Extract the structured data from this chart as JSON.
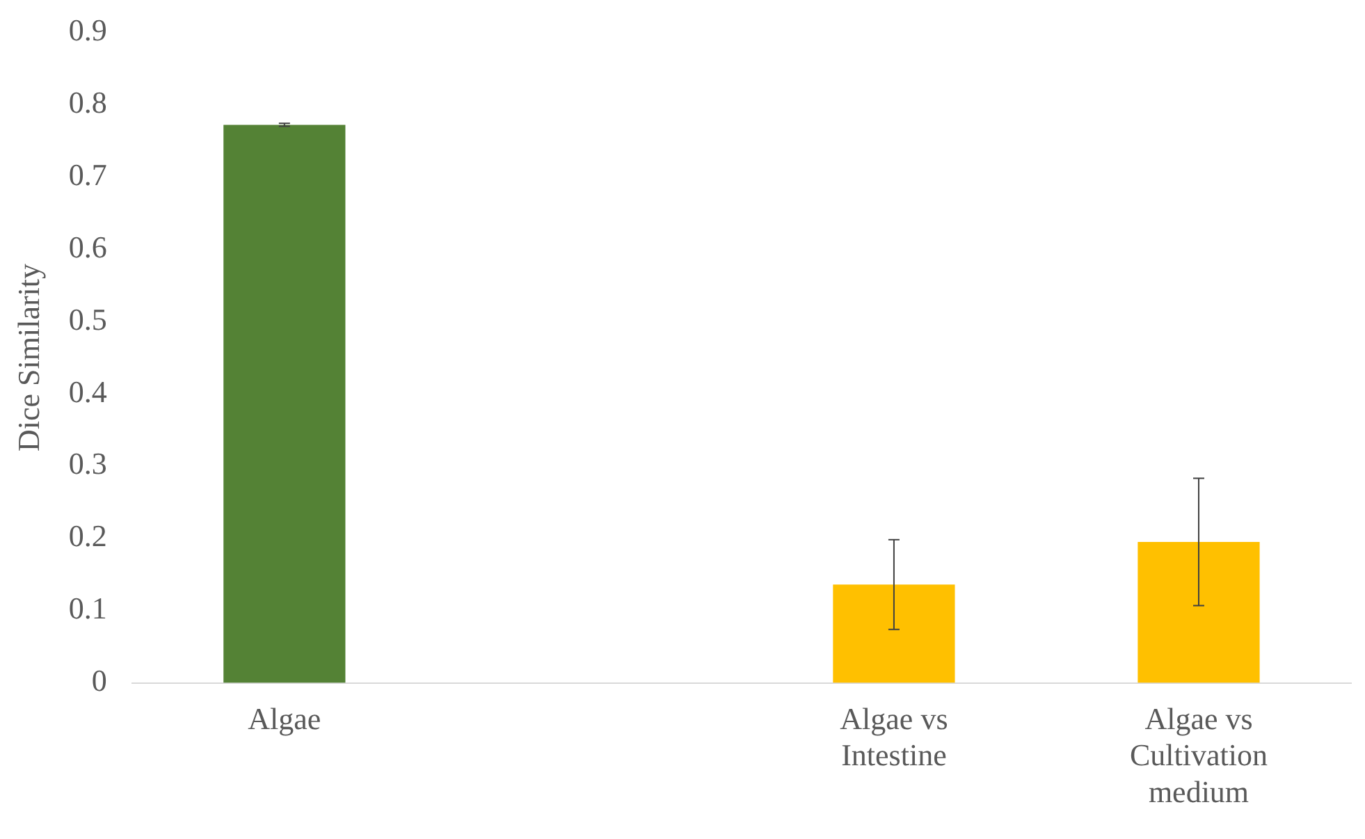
{
  "chart_data": {
    "type": "bar",
    "ylabel": "Dice Similarity",
    "categories": [
      "Algae",
      null,
      "Algae vs Intestine",
      "Algae vs Cultivation medium"
    ],
    "values": [
      0.772,
      null,
      0.136,
      0.195
    ],
    "colors": [
      "#548235",
      "#548235",
      "#ffc000",
      "#ffc000"
    ],
    "errors": [
      0.002,
      null,
      0.062,
      0.088
    ],
    "ylim": [
      0,
      0.9
    ],
    "yticks": [
      0,
      0.1,
      0.2,
      0.3,
      0.4,
      0.5,
      0.6,
      0.7,
      0.8,
      0.9
    ],
    "grid": false,
    "legend": false
  }
}
